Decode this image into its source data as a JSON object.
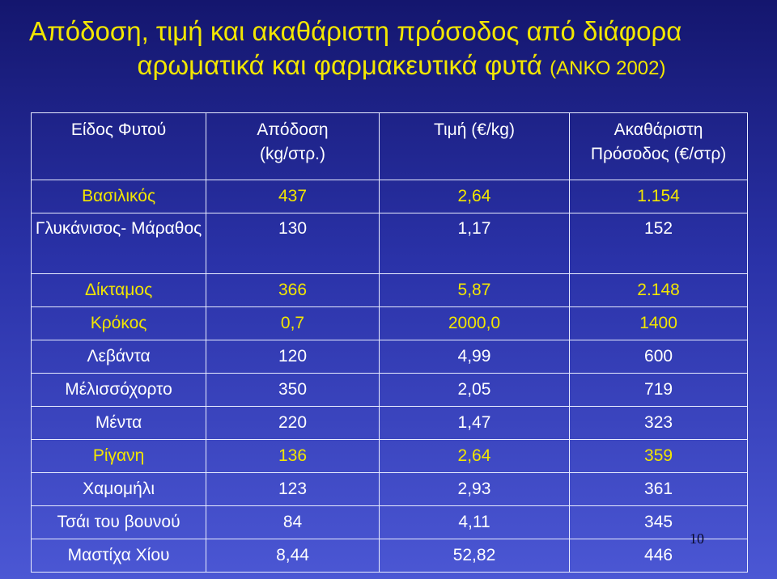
{
  "title": {
    "line1": "Απόδοση, τιμή και ακαθάριστη πρόσοδος από διάφορα",
    "line2_main": "αρωματικά και φαρμακευτικά φυτά",
    "line2_sub": "(ΑΝΚΟ 2002)"
  },
  "colors": {
    "title": "#f2e600",
    "highlight_row": "#f2e600",
    "text": "#ffffff",
    "background_top": "#14166e",
    "background_bottom": "#4b57d4"
  },
  "table": {
    "headers": [
      {
        "line1": "Είδος Φυτού",
        "line2": ""
      },
      {
        "line1": "Απόδοση",
        "line2": "(kg/στρ.)"
      },
      {
        "line1": "Τιμή (€/kg)",
        "line2": ""
      },
      {
        "line1": "Ακαθάριστη",
        "line2": "Πρόσοδος (€/στρ)"
      }
    ],
    "rows": [
      {
        "name": "Βασιλικός",
        "yield": "437",
        "price": "2,64",
        "income": "1.154",
        "highlight": true
      },
      {
        "name": "Γλυκάνισος- Μάραθος",
        "yield": "130",
        "price": "1,17",
        "income": "152",
        "highlight": false
      },
      {
        "name": "Δίκταμος",
        "yield": "366",
        "price": "5,87",
        "income": "2.148",
        "highlight": true
      },
      {
        "name": "Κρόκος",
        "yield": "0,7",
        "price": "2000,0",
        "income": "1400",
        "highlight": true
      },
      {
        "name": "Λεβάντα",
        "yield": "120",
        "price": "4,99",
        "income": "600",
        "highlight": false
      },
      {
        "name": "Μέλισσόχορτο",
        "yield": "350",
        "price": "2,05",
        "income": "719",
        "highlight": false
      },
      {
        "name": "Μέντα",
        "yield": "220",
        "price": "1,47",
        "income": "323",
        "highlight": false
      },
      {
        "name": "Ρίγανη",
        "yield": "136",
        "price": "2,64",
        "income": "359",
        "highlight": true
      },
      {
        "name": "Χαμομήλι",
        "yield": "123",
        "price": "2,93",
        "income": "361",
        "highlight": false
      },
      {
        "name": "Τσάι του βουνού",
        "yield": "84",
        "price": "4,11",
        "income": "345",
        "highlight": false
      },
      {
        "name": "Μαστίχα Χίου",
        "yield": "8,44",
        "price": "52,82",
        "income": "446",
        "highlight": false
      }
    ]
  },
  "page_number": "10"
}
